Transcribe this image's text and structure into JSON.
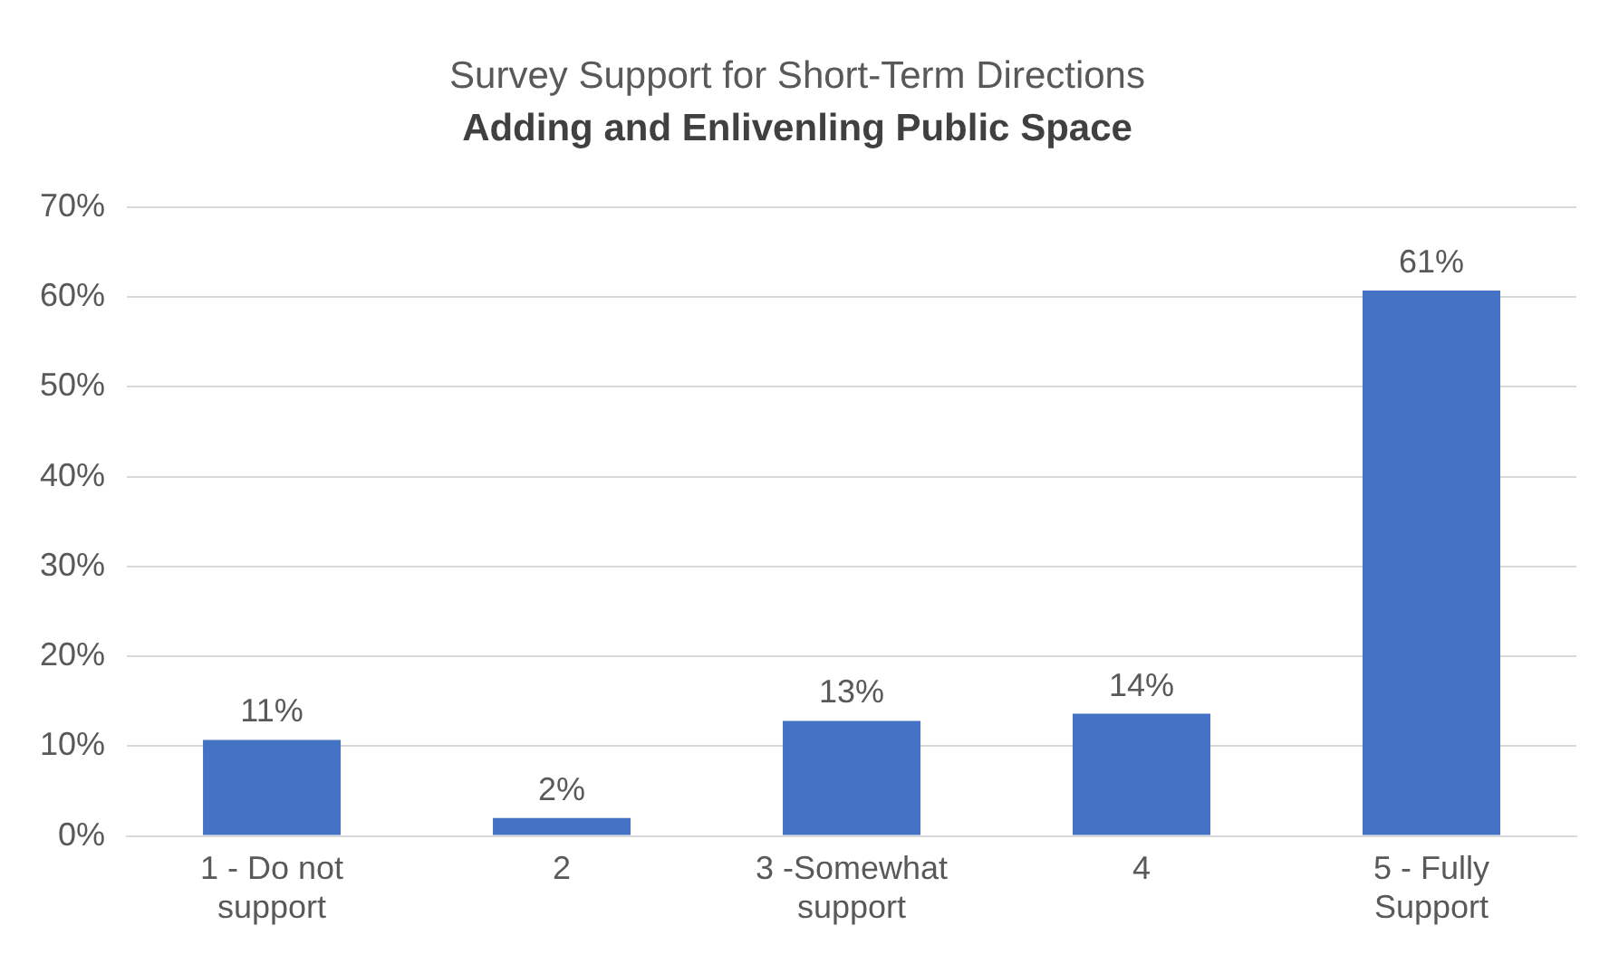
{
  "chart_data": {
    "type": "bar",
    "title": "Survey Support for Short-Term Directions",
    "subtitle": "Adding and Enlivenling Public Space",
    "categories": [
      "1 - Do not support",
      "2",
      "3 -Somewhat support",
      "4",
      "5 - Fully Support"
    ],
    "values": [
      10.7,
      2,
      12.8,
      13.6,
      60.7
    ],
    "value_labels": [
      "11%",
      "2%",
      "13%",
      "14%",
      "61%"
    ],
    "color": "#4472c4",
    "ylim": [
      0,
      70
    ],
    "yticks": [
      {
        "value": 0,
        "label": "0%"
      },
      {
        "value": 10,
        "label": "10%"
      },
      {
        "value": 20,
        "label": "20%"
      },
      {
        "value": 30,
        "label": "30%"
      },
      {
        "value": 40,
        "label": "40%"
      },
      {
        "value": 50,
        "label": "50%"
      },
      {
        "value": 60,
        "label": "60%"
      },
      {
        "value": 70,
        "label": "70%"
      }
    ],
    "grid": "y",
    "legend": false
  }
}
